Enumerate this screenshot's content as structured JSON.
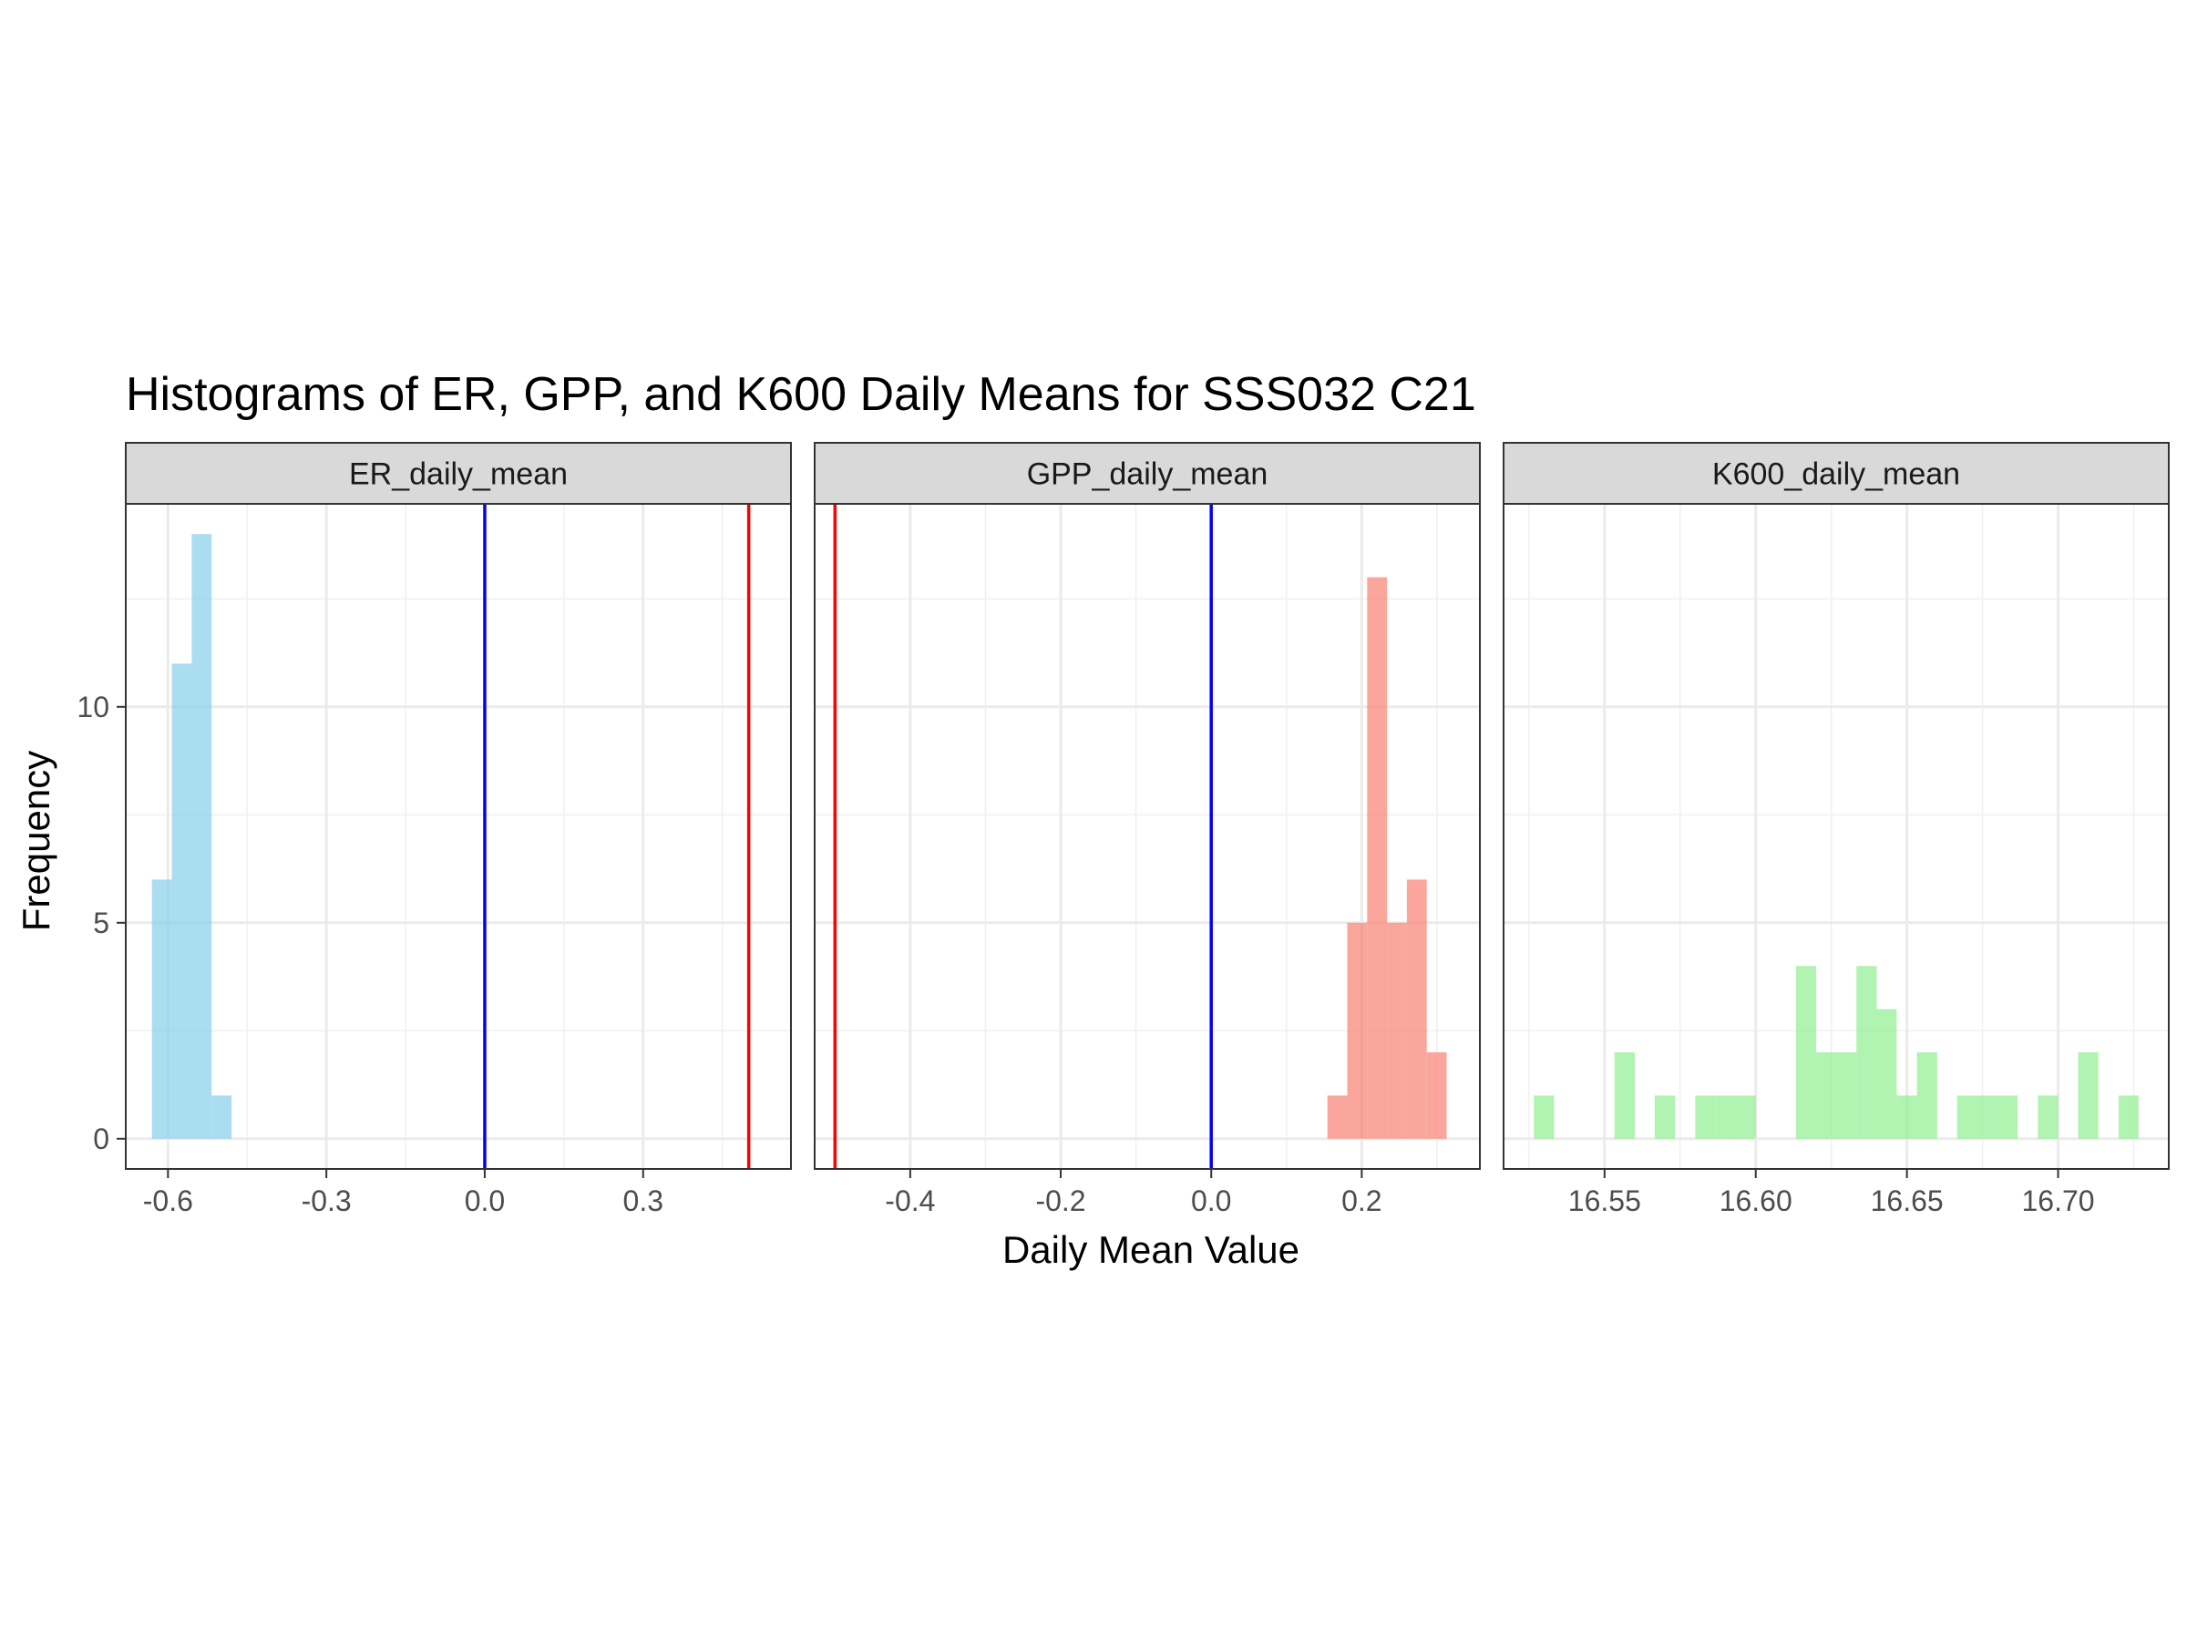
{
  "chart_data": {
    "type": "bar",
    "title": "Histograms of ER, GPP, and K600 Daily Means for SSS032 C21",
    "xlabel": "Daily Mean Value",
    "ylabel": "Frequency",
    "ylim": [
      -0.7,
      14.7
    ],
    "y_ticks": [
      0,
      5,
      10
    ],
    "y_tick_labels": [
      "0",
      "5",
      "10"
    ],
    "grid": true,
    "legend": "none",
    "panels": [
      {
        "strip_label": "ER_daily_mean",
        "color": "#87CEEB",
        "xlim": [
          -0.68,
          0.58
        ],
        "x_ticks": [
          -0.6,
          -0.3,
          0.0,
          0.3
        ],
        "x_tick_labels": [
          "-0.6",
          "-0.3",
          "0.0",
          "0.3"
        ],
        "bins": [
          {
            "x0": -0.6305,
            "x1": -0.5928,
            "count": 6
          },
          {
            "x0": -0.5928,
            "x1": -0.5551,
            "count": 11
          },
          {
            "x0": -0.5551,
            "x1": -0.5174,
            "count": 14
          },
          {
            "x0": -0.5174,
            "x1": -0.4797,
            "count": 1
          }
        ],
        "vlines": [
          {
            "x": 0.0,
            "color": "#0000FF"
          },
          {
            "x": 0.5,
            "color": "#FF0000"
          }
        ]
      },
      {
        "strip_label": "GPP_daily_mean",
        "color": "#FA8072",
        "xlim": [
          -0.527,
          0.357
        ],
        "x_ticks": [
          -0.4,
          -0.2,
          0.0,
          0.2
        ],
        "x_tick_labels": [
          "-0.4",
          "-0.2",
          "0.0",
          "0.2"
        ],
        "bins": [
          {
            "x0": 0.1544,
            "x1": 0.1808,
            "count": 1
          },
          {
            "x0": 0.1808,
            "x1": 0.2072,
            "count": 5
          },
          {
            "x0": 0.2072,
            "x1": 0.2336,
            "count": 13
          },
          {
            "x0": 0.2336,
            "x1": 0.26,
            "count": 5
          },
          {
            "x0": 0.26,
            "x1": 0.2864,
            "count": 6
          },
          {
            "x0": 0.2864,
            "x1": 0.3128,
            "count": 2
          }
        ],
        "vlines": [
          {
            "x": -0.5,
            "color": "#FF0000"
          },
          {
            "x": 0.0,
            "color": "#0000FF"
          }
        ]
      },
      {
        "strip_label": "K600_daily_mean",
        "color": "#90EE90",
        "xlim": [
          16.5166,
          16.7366
        ],
        "x_ticks": [
          16.55,
          16.6,
          16.65,
          16.7
        ],
        "x_tick_labels": [
          "16.55",
          "16.60",
          "16.65",
          "16.70"
        ],
        "bins": [
          {
            "x0": 16.5266,
            "x1": 16.5333,
            "count": 1
          },
          {
            "x0": 16.5333,
            "x1": 16.54,
            "count": 0
          },
          {
            "x0": 16.54,
            "x1": 16.5466,
            "count": 0
          },
          {
            "x0": 16.5466,
            "x1": 16.5533,
            "count": 0
          },
          {
            "x0": 16.5533,
            "x1": 16.56,
            "count": 2
          },
          {
            "x0": 16.56,
            "x1": 16.5666,
            "count": 0
          },
          {
            "x0": 16.5666,
            "x1": 16.5733,
            "count": 1
          },
          {
            "x0": 16.5733,
            "x1": 16.58,
            "count": 0
          },
          {
            "x0": 16.58,
            "x1": 16.5866,
            "count": 1
          },
          {
            "x0": 16.5866,
            "x1": 16.5933,
            "count": 1
          },
          {
            "x0": 16.5933,
            "x1": 16.6,
            "count": 1
          },
          {
            "x0": 16.6,
            "x1": 16.6066,
            "count": 0
          },
          {
            "x0": 16.6066,
            "x1": 16.6133,
            "count": 0
          },
          {
            "x0": 16.6133,
            "x1": 16.62,
            "count": 4
          },
          {
            "x0": 16.62,
            "x1": 16.6266,
            "count": 2
          },
          {
            "x0": 16.6266,
            "x1": 16.6333,
            "count": 2
          },
          {
            "x0": 16.6333,
            "x1": 16.64,
            "count": 4
          },
          {
            "x0": 16.64,
            "x1": 16.6466,
            "count": 3
          },
          {
            "x0": 16.6466,
            "x1": 16.6533,
            "count": 1
          },
          {
            "x0": 16.6533,
            "x1": 16.66,
            "count": 2
          },
          {
            "x0": 16.66,
            "x1": 16.6666,
            "count": 0
          },
          {
            "x0": 16.6666,
            "x1": 16.6733,
            "count": 1
          },
          {
            "x0": 16.6733,
            "x1": 16.68,
            "count": 1
          },
          {
            "x0": 16.68,
            "x1": 16.6866,
            "count": 1
          },
          {
            "x0": 16.6866,
            "x1": 16.6933,
            "count": 0
          },
          {
            "x0": 16.6933,
            "x1": 16.7,
            "count": 1
          },
          {
            "x0": 16.7,
            "x1": 16.7066,
            "count": 0
          },
          {
            "x0": 16.7066,
            "x1": 16.7133,
            "count": 2
          },
          {
            "x0": 16.7133,
            "x1": 16.72,
            "count": 0
          },
          {
            "x0": 16.72,
            "x1": 16.7266,
            "count": 1
          }
        ],
        "vlines": []
      }
    ]
  }
}
